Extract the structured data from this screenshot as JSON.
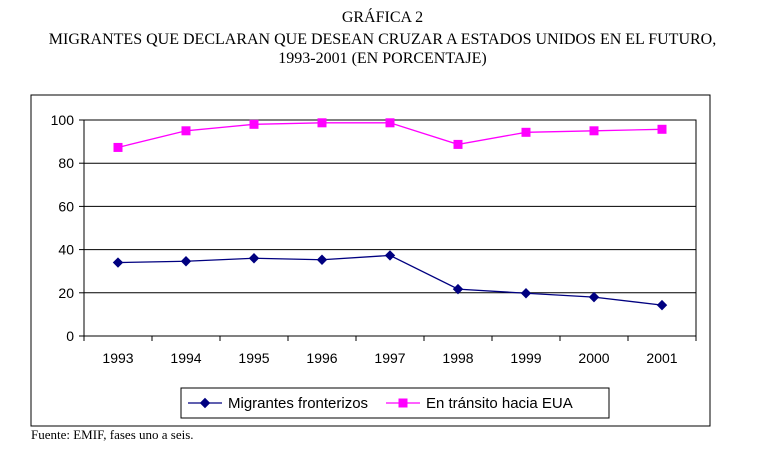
{
  "header": {
    "label": "GRÁFICA 2",
    "title_line1": "MIGRANTES QUE DECLARAN QUE DESEAN CRUZAR A ESTADOS UNIDOS EN EL FUTURO,",
    "title_line2": "1993-2001 (EN PORCENTAJE)"
  },
  "source": "Fuente: EMIF, fases uno a seis.",
  "chart_data": {
    "type": "line",
    "title": "MIGRANTES QUE DECLARAN QUE DESEAN CRUZAR A ESTADOS UNIDOS EN EL FUTURO, 1993-2001 (EN PORCENTAJE)",
    "xlabel": "",
    "ylabel": "",
    "categories": [
      "1993",
      "1994",
      "1995",
      "1996",
      "1997",
      "1998",
      "1999",
      "2000",
      "2001"
    ],
    "ylim": [
      0,
      100
    ],
    "yticks": [
      0,
      20,
      40,
      60,
      80,
      100
    ],
    "grid": "horizontal",
    "legend_position": "bottom",
    "series": [
      {
        "name": "Migrantes fronterizos",
        "color": "#000080",
        "marker": "diamond",
        "values": [
          34,
          34.6,
          36,
          35.3,
          37.3,
          21.7,
          19.8,
          18,
          14.3
        ]
      },
      {
        "name": "En tránsito hacia EUA",
        "color": "#FF00FF",
        "marker": "square",
        "values": [
          87.3,
          95,
          98,
          98.7,
          98.7,
          88.7,
          94.3,
          95,
          95.7
        ]
      }
    ]
  }
}
